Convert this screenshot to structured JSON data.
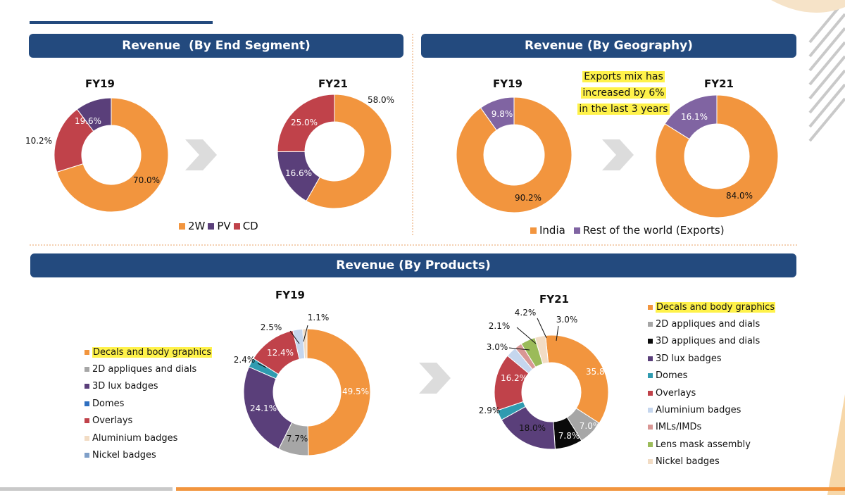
{
  "headers": {
    "segment": "Revenue  (By End Segment)",
    "geography": "Revenue (By Geography)",
    "products": "Revenue (By Products)"
  },
  "note": {
    "line1": "Exports mix has",
    "line2": "increased by 6%",
    "line3": "in the last 3 years"
  },
  "segment_legend": [
    "2W",
    "PV",
    "CD"
  ],
  "geography_legend": [
    "India",
    "Rest of the world (Exports)"
  ],
  "product_legend": [
    "Decals and body graphics",
    "2D appliques and dials",
    "3D appliques and dials",
    "3D lux badges",
    "Domes",
    "Overlays",
    "Aluminium badges",
    "IMLs/IMDs",
    "Lens mask assembly",
    "Nickel badges"
  ],
  "colors": {
    "2W": "#f2953e",
    "PV": "#5a3f7a",
    "CD": "#c0424a",
    "India": "#f2953e",
    "Exports": "#8064a2",
    "Decals and body graphics": "#f2953e",
    "2D appliques and dials": "#a6a6a6",
    "3D appliques and dials": "#0a0a0a",
    "3D lux badges": "#5a3f7a",
    "Domes": "#2f9bb0",
    "Overlays": "#c0424a",
    "Aluminium badges": "#c5d6ee",
    "IMLs/IMDs": "#d99694",
    "Lens mask assembly": "#9bbb59",
    "Nickel badges": "#f2dcc4",
    "header_bg": "#234a7e",
    "highlight": "#fff24a"
  },
  "chart_data": [
    {
      "id": "segment_fy19",
      "type": "donut",
      "title": "FY19",
      "categories": [
        "2W",
        "PV",
        "CD"
      ],
      "values": [
        70.0,
        10.2,
        19.6
      ],
      "labels": [
        "70.0%",
        "10.2%",
        "19.6%"
      ]
    },
    {
      "id": "segment_fy21",
      "type": "donut",
      "title": "FY21",
      "categories": [
        "2W",
        "PV",
        "CD"
      ],
      "values": [
        58.0,
        16.6,
        25.0
      ],
      "labels": [
        "58.0%",
        "16.6%",
        "25.0%"
      ]
    },
    {
      "id": "geo_fy19",
      "type": "donut",
      "title": "FY19",
      "categories": [
        "India",
        "Rest of the world (Exports)"
      ],
      "values": [
        90.2,
        9.8
      ],
      "labels": [
        "90.2%",
        "9.8%"
      ]
    },
    {
      "id": "geo_fy21",
      "type": "donut",
      "title": "FY21",
      "categories": [
        "India",
        "Rest of the world (Exports)"
      ],
      "values": [
        84.0,
        16.1
      ],
      "labels": [
        "84.0%",
        "16.1%"
      ]
    },
    {
      "id": "product_fy19",
      "type": "donut",
      "title": "FY19",
      "categories": [
        "Decals and body graphics",
        "2D appliques and dials",
        "3D lux badges",
        "Domes",
        "Overlays",
        "Aluminium badges",
        "Nickel badges"
      ],
      "values": [
        49.5,
        7.7,
        24.1,
        2.4,
        12.4,
        2.5,
        1.1
      ],
      "labels": [
        "49.5%",
        "7.7%",
        "24.1%",
        "2.4%",
        "12.4%",
        "2.5%",
        "1.1%"
      ]
    },
    {
      "id": "product_fy21",
      "type": "donut",
      "title": "FY21",
      "categories": [
        "Decals and body graphics",
        "2D appliques and dials",
        "3D appliques and dials",
        "3D lux badges",
        "Domes",
        "Overlays",
        "Aluminium badges",
        "IMLs/IMDs",
        "Lens mask assembly",
        "Nickel badges"
      ],
      "values": [
        35.8,
        7.0,
        7.8,
        18.0,
        2.9,
        16.2,
        3.0,
        2.1,
        4.2,
        3.0
      ],
      "labels": [
        "35.8%",
        "7.0%",
        "7.8%",
        "18.0%",
        "2.9%",
        "16.2%",
        "3.0%",
        "2.1%",
        "4.2%",
        "3.0%"
      ]
    }
  ]
}
